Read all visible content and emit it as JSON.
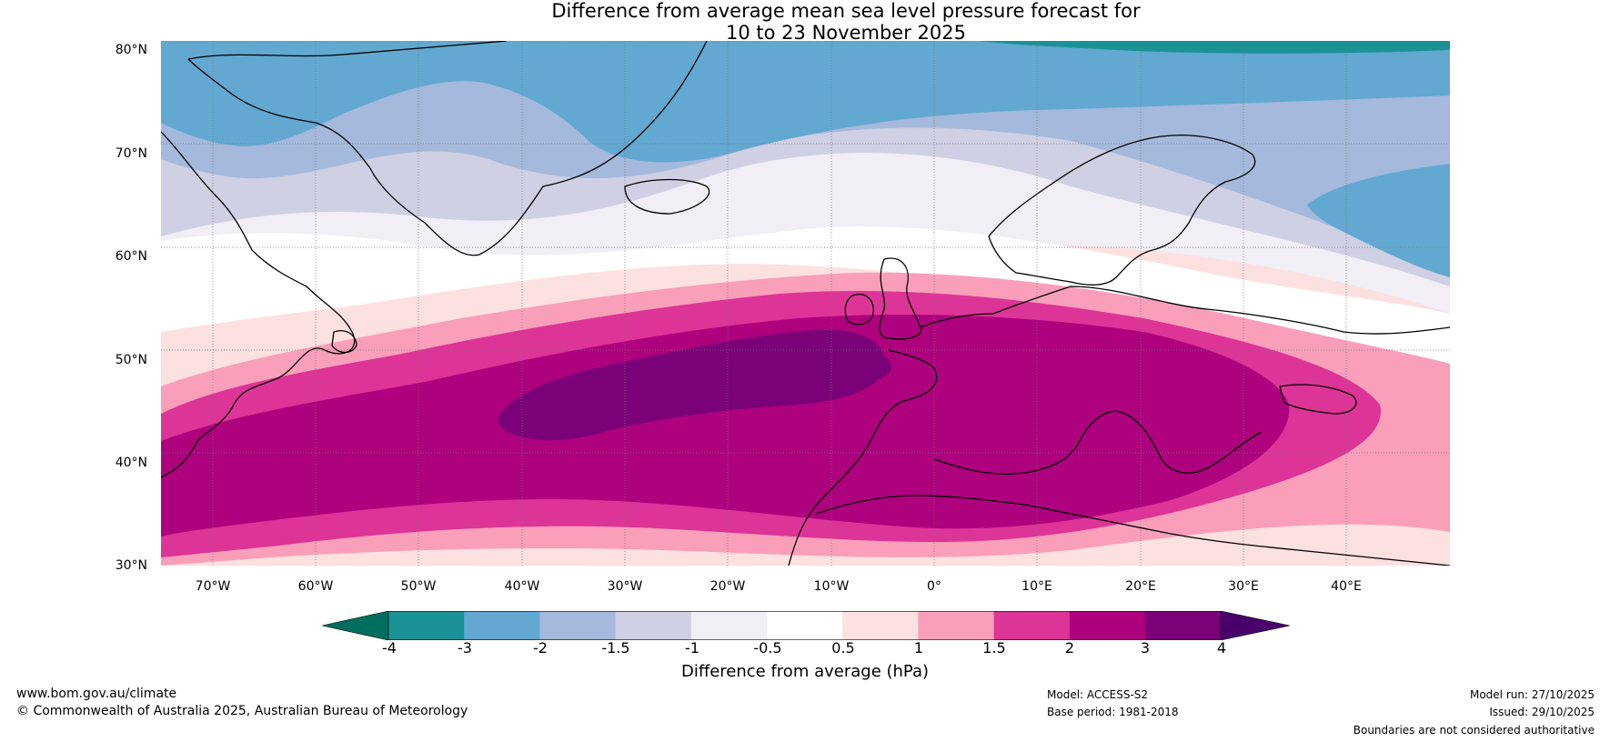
{
  "title": {
    "line1": "Difference from average mean sea level pressure forecast for",
    "line2": "10 to 23 November 2025"
  },
  "map": {
    "lat_labels": [
      "80°N",
      "70°N",
      "60°N",
      "50°N",
      "40°N",
      "30°N"
    ],
    "lon_labels": [
      "70°W",
      "60°W",
      "50°W",
      "40°W",
      "30°W",
      "20°W",
      "10°W",
      "0°",
      "10°E",
      "20°E",
      "30°E",
      "40°E"
    ],
    "lat_range": [
      30,
      80
    ],
    "lon_range": [
      -75,
      50
    ]
  },
  "colorbar": {
    "ticks": [
      "-4",
      "-3",
      "-2",
      "-1.5",
      "-1",
      "-0.5",
      "0.5",
      "1",
      "1.5",
      "2",
      "3",
      "4"
    ],
    "colors": [
      "#006e5e",
      "#1a9296",
      "#62a8d0",
      "#a5b9dc",
      "#cfd0e4",
      "#f1eef5",
      "#ffffff",
      "#fde0e0",
      "#f99fba",
      "#dd3497",
      "#ae017e",
      "#7a0177",
      "#49006a"
    ],
    "label": "Difference from average (hPa)"
  },
  "footer": {
    "url": "www.bom.gov.au/climate",
    "copyright": "© Commonwealth of Australia 2025, Australian Bureau of Meteorology",
    "model": "Model: ACCESS-S2",
    "base_period": "Base period: 1981-2018",
    "model_run": "Model run: 27/10/2025",
    "issued": "Issued: 29/10/2025",
    "disclaimer": "Boundaries are not considered authoritative"
  }
}
